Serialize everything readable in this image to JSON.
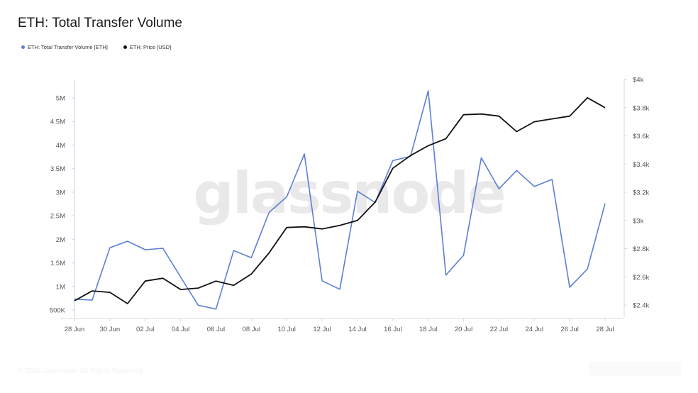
{
  "page": {
    "title": "ETH: Total Transfer Volume",
    "watermark": "glassnode",
    "footer": "© 2020 Glassnode. All Rights Reserved."
  },
  "legend": [
    {
      "label": "ETH: Total Transfer Volume [ETH]",
      "color": "#5b7fd6"
    },
    {
      "label": "ETH: Price [USD]",
      "color": "#111111"
    }
  ],
  "chart_data": {
    "type": "line",
    "x": [
      "28 Jun",
      "29 Jun",
      "30 Jun",
      "01 Jul",
      "02 Jul",
      "03 Jul",
      "04 Jul",
      "05 Jul",
      "06 Jul",
      "07 Jul",
      "08 Jul",
      "09 Jul",
      "10 Jul",
      "11 Jul",
      "12 Jul",
      "13 Jul",
      "14 Jul",
      "15 Jul",
      "16 Jul",
      "17 Jul",
      "18 Jul",
      "19 Jul",
      "20 Jul",
      "21 Jul",
      "22 Jul",
      "23 Jul",
      "24 Jul",
      "25 Jul",
      "26 Jul",
      "27 Jul",
      "28 Jul"
    ],
    "x_tick_labels": [
      "28 Jun",
      "30 Jun",
      "02 Jul",
      "04 Jul",
      "06 Jul",
      "08 Jul",
      "10 Jul",
      "12 Jul",
      "14 Jul",
      "16 Jul",
      "18 Jul",
      "20 Jul",
      "22 Jul",
      "24 Jul",
      "26 Jul",
      "28 Jul"
    ],
    "series": [
      {
        "name": "ETH: Total Transfer Volume [ETH]",
        "axis": "left",
        "color": "#5b7fd6",
        "values": [
          730000,
          710000,
          1820000,
          1960000,
          1780000,
          1810000,
          1200000,
          600000,
          520000,
          1760000,
          1610000,
          2570000,
          2900000,
          3810000,
          1120000,
          940000,
          3020000,
          2780000,
          3670000,
          3760000,
          5150000,
          1240000,
          1660000,
          3730000,
          3070000,
          3460000,
          3120000,
          3270000,
          980000,
          1370000,
          2760000
        ]
      },
      {
        "name": "ETH: Price [USD]",
        "axis": "right",
        "color": "#111111",
        "values": [
          2430,
          2500,
          2490,
          2410,
          2570,
          2590,
          2510,
          2520,
          2570,
          2540,
          2620,
          2770,
          2950,
          2955,
          2940,
          2965,
          3000,
          3130,
          3370,
          3460,
          3530,
          3580,
          3750,
          3755,
          3740,
          3630,
          3700,
          3720,
          3740,
          3870,
          3800
        ]
      }
    ],
    "y_left": {
      "ticks": [
        "500K",
        "1M",
        "1.5M",
        "2M",
        "2.5M",
        "3M",
        "3.5M",
        "4M",
        "4.5M",
        "5M"
      ],
      "values": [
        500000,
        1000000,
        1500000,
        2000000,
        2500000,
        3000000,
        3500000,
        4000000,
        4500000,
        5000000
      ]
    },
    "y_right": {
      "ticks": [
        "$2.4k",
        "$2.6k",
        "$2.8k",
        "$3k",
        "$3.2k",
        "$3.4k",
        "$3.6k",
        "$3.8k",
        "$4k"
      ],
      "values": [
        2400,
        2600,
        2800,
        3000,
        3200,
        3400,
        3600,
        3800,
        4000
      ]
    },
    "grid": false,
    "legend_position": "top-left"
  }
}
